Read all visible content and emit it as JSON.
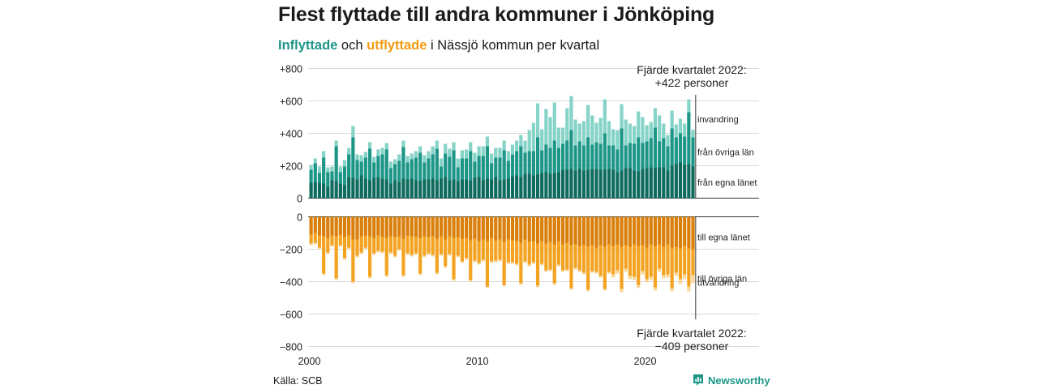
{
  "title": "Flest flyttade till andra kommuner i Jönköping",
  "subtitle": {
    "in_word": "Inflyttade",
    "mid1": " och ",
    "out_word": "utflyttade",
    "rest": " i Nässjö kommun per kvartal"
  },
  "source": "Källa: SCB",
  "brand": "Newsworthy",
  "colors": {
    "in_local": "#0e6b5e",
    "in_other": "#1d9688",
    "in_immigration": "#86d3c8",
    "out_local": "#d97f0b",
    "out_other": "#f3a321",
    "out_emigration": "#f9d79b",
    "brand": "#1d9688"
  },
  "chart_data": {
    "type": "bar",
    "stacked": true,
    "x_start": 2000,
    "periods_per_year": 4,
    "x_ticks": [
      "2000",
      "2010",
      "2020"
    ],
    "y_ticks_in": [
      "+800",
      "+600",
      "+400",
      "+200",
      "0"
    ],
    "y_ticks_out": [
      "0",
      "−200",
      "−400",
      "−600",
      "−800"
    ],
    "y_tick_values_in": [
      800,
      600,
      400,
      200,
      0
    ],
    "y_tick_values_out": [
      0,
      -200,
      -400,
      -600,
      -800
    ],
    "ylim": [
      -800,
      800
    ],
    "grid": true,
    "in_series": [
      {
        "name": "från egna länet",
        "values": [
          95,
          100,
          95,
          90,
          70,
          110,
          105,
          90,
          80,
          130,
          125,
          115,
          140,
          120,
          110,
          125,
          130,
          120,
          115,
          90,
          110,
          100,
          120,
          115,
          120,
          110,
          105,
          115,
          115,
          120,
          110,
          120,
          130,
          110,
          115,
          105,
          115,
          115,
          110,
          125,
          130,
          110,
          120,
          115,
          130,
          110,
          115,
          120,
          135,
          140,
          130,
          150,
          150,
          140,
          145,
          155,
          160,
          150,
          155,
          160,
          175,
          175,
          180,
          170,
          180,
          170,
          175,
          180,
          180,
          175,
          175,
          180,
          175,
          160,
          170,
          185,
          185,
          170,
          165,
          180,
          185,
          190,
          185,
          190,
          190,
          170,
          200,
          210,
          220,
          205,
          210,
          195
        ]
      },
      {
        "name": "från övriga län",
        "values": [
          80,
          115,
          60,
          160,
          90,
          55,
          215,
          70,
          115,
          140,
          250,
          120,
          85,
          130,
          195,
          95,
          130,
          150,
          185,
          95,
          100,
          130,
          195,
          105,
          120,
          140,
          175,
          105,
          130,
          150,
          195,
          75,
          145,
          145,
          180,
          85,
          130,
          130,
          180,
          100,
          130,
          150,
          200,
          100,
          120,
          140,
          180,
          110,
          135,
          150,
          190,
          130,
          140,
          150,
          230,
          140,
          170,
          160,
          200,
          150,
          160,
          180,
          240,
          155,
          170,
          155,
          200,
          150,
          165,
          160,
          225,
          145,
          150,
          140,
          260,
          140,
          155,
          165,
          210,
          160,
          165,
          180,
          250,
          160,
          180,
          150,
          230,
          165,
          180,
          175,
          320,
          180
        ]
      },
      {
        "name": "invandring",
        "values": [
          30,
          30,
          40,
          40,
          30,
          30,
          35,
          35,
          40,
          40,
          70,
          35,
          40,
          35,
          40,
          35,
          40,
          40,
          40,
          40,
          30,
          40,
          40,
          40,
          35,
          40,
          40,
          45,
          45,
          50,
          50,
          50,
          60,
          50,
          50,
          55,
          50,
          55,
          55,
          55,
          60,
          60,
          60,
          60,
          60,
          60,
          60,
          60,
          60,
          65,
          70,
          75,
          130,
          175,
          210,
          130,
          220,
          190,
          235,
          125,
          100,
          200,
          210,
          160,
          110,
          150,
          200,
          180,
          120,
          160,
          210,
          150,
          100,
          120,
          150,
          160,
          120,
          110,
          160,
          160,
          100,
          100,
          120,
          160,
          90,
          70,
          110,
          80,
          90,
          80,
          80,
          47
        ]
      }
    ],
    "out_series": [
      {
        "name": "till egna länet",
        "values": [
          110,
          100,
          115,
          120,
          130,
          115,
          120,
          110,
          125,
          115,
          140,
          140,
          120,
          115,
          120,
          130,
          115,
          125,
          130,
          120,
          125,
          120,
          135,
          115,
          120,
          125,
          130,
          120,
          125,
          120,
          135,
          120,
          140,
          120,
          130,
          125,
          135,
          130,
          145,
          135,
          150,
          140,
          150,
          130,
          145,
          140,
          155,
          140,
          145,
          150,
          160,
          140,
          155,
          150,
          165,
          150,
          165,
          155,
          170,
          150,
          170,
          160,
          175,
          170,
          180,
          175,
          185,
          175,
          190,
          175,
          185,
          170,
          180,
          170,
          185,
          175,
          185,
          170,
          180,
          175,
          190,
          170,
          180,
          170,
          185,
          170,
          190,
          185,
          195,
          180,
          195,
          200
        ]
      },
      {
        "name": "till övriga län",
        "values": [
          55,
          60,
          75,
          230,
          90,
          60,
          260,
          65,
          130,
          75,
          260,
          100,
          100,
          75,
          250,
          95,
          95,
          90,
          230,
          100,
          115,
          80,
          225,
          110,
          115,
          100,
          220,
          120,
          100,
          115,
          210,
          110,
          165,
          110,
          255,
          115,
          140,
          125,
          245,
          135,
          135,
          125,
          280,
          145,
          125,
          125,
          265,
          140,
          135,
          140,
          250,
          135,
          140,
          130,
          260,
          140,
          165,
          170,
          240,
          145,
          160,
          165,
          265,
          145,
          150,
          170,
          265,
          160,
          150,
          190,
          260,
          170,
          175,
          160,
          260,
          145,
          180,
          200,
          240,
          160,
          195,
          200,
          255,
          150,
          175,
          185,
          250,
          160,
          190,
          175,
          235,
          161
        ]
      },
      {
        "name": "utvandring",
        "values": [
          10,
          10,
          10,
          10,
          10,
          10,
          10,
          10,
          10,
          10,
          10,
          10,
          10,
          10,
          10,
          10,
          10,
          10,
          10,
          10,
          10,
          10,
          10,
          10,
          10,
          10,
          10,
          10,
          10,
          10,
          10,
          10,
          10,
          10,
          10,
          10,
          10,
          10,
          10,
          10,
          10,
          10,
          10,
          10,
          10,
          10,
          10,
          10,
          10,
          10,
          10,
          10,
          10,
          10,
          10,
          10,
          10,
          10,
          10,
          10,
          10,
          10,
          10,
          10,
          10,
          10,
          10,
          10,
          10,
          10,
          10,
          10,
          20,
          20,
          20,
          20,
          20,
          20,
          20,
          20,
          20,
          20,
          20,
          20,
          20,
          20,
          20,
          20,
          30,
          30,
          30,
          48
        ]
      }
    ],
    "segment_labels_in": [
      "invandring",
      "från övriga län",
      "från egna länet"
    ],
    "segment_labels_out": [
      "till egna länet",
      "till övriga län",
      "utvandring"
    ],
    "annotation_in": {
      "line1": "Fjärde kvartalet 2022:",
      "line2": "+422 personer"
    },
    "annotation_out": {
      "line1": "Fjärde kvartalet 2022:",
      "line2": "−409 personer"
    }
  }
}
